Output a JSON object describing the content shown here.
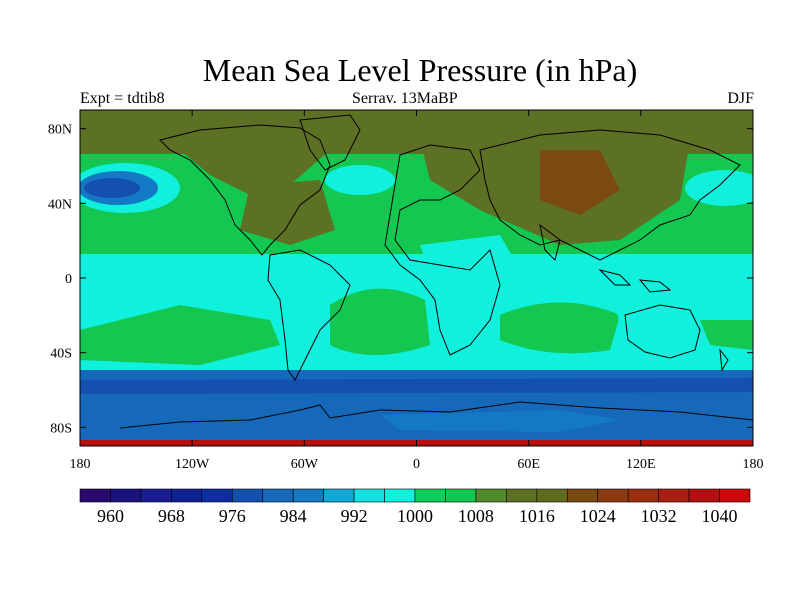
{
  "header": {
    "title": "Mean Sea Level Pressure (in hPa)",
    "experiment": "Expt = tdtib8",
    "case": "Serrav.   13MaBP",
    "season": "DJF"
  },
  "map": {
    "lat_ticks": [
      {
        "label": "80N",
        "lat": 80
      },
      {
        "label": "40N",
        "lat": 40
      },
      {
        "label": "0",
        "lat": 0
      },
      {
        "label": "40S",
        "lat": -40
      },
      {
        "label": "80S",
        "lat": -80
      }
    ],
    "lon_ticks": [
      {
        "label": "180",
        "lon": -180
      },
      {
        "label": "120W",
        "lon": -120
      },
      {
        "label": "60W",
        "lon": -60
      },
      {
        "label": "0",
        "lon": 0
      },
      {
        "label": "60E",
        "lon": 60
      },
      {
        "label": "120E",
        "lon": 120
      },
      {
        "label": "180",
        "lon": 180
      }
    ],
    "extent": {
      "lon": [
        -180,
        180
      ],
      "lat": [
        -90,
        90
      ]
    }
  },
  "colorbar": {
    "colors": [
      "#2a0a6e",
      "#1a137f",
      "#1a1c92",
      "#0e2296",
      "#0c2ea2",
      "#1450b0",
      "#1668bb",
      "#1479c4",
      "#11a7d6",
      "#16e0df",
      "#10f0dc",
      "#0fcd59",
      "#13c750",
      "#4f8b2a",
      "#5c7124",
      "#5f6a1c",
      "#7a4a10",
      "#8c3a12",
      "#9c2e10",
      "#a81e10",
      "#b41010",
      "#cc0a0a"
    ],
    "labels": [
      {
        "text": "960",
        "index": 1
      },
      {
        "text": "968",
        "index": 3
      },
      {
        "text": "976",
        "index": 5
      },
      {
        "text": "984",
        "index": 7
      },
      {
        "text": "992",
        "index": 9
      },
      {
        "text": "1000",
        "index": 11
      },
      {
        "text": "1008",
        "index": 13
      },
      {
        "text": "1016",
        "index": 15
      },
      {
        "text": "1024",
        "index": 17
      },
      {
        "text": "1032",
        "index": 19
      },
      {
        "text": "1040",
        "index": 21
      }
    ]
  }
}
